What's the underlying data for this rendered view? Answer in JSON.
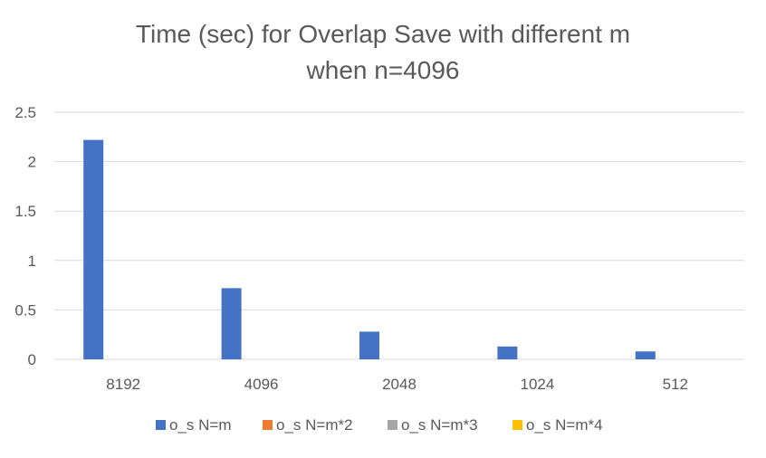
{
  "chart_data": {
    "type": "bar",
    "title": "Time (sec) for Overlap Save with different m",
    "subtitle": "when n=4096",
    "categories": [
      "8192",
      "4096",
      "2048",
      "1024",
      "512"
    ],
    "series": [
      {
        "name": "o_s N=m",
        "color": "#4472C4",
        "values": [
          2.22,
          0.72,
          0.28,
          0.13,
          0.08
        ]
      },
      {
        "name": "o_s N=m*2",
        "color": "#ED7D31",
        "values": [
          0,
          0,
          0,
          0,
          0
        ]
      },
      {
        "name": "o_s N=m*3",
        "color": "#A5A5A5",
        "values": [
          0,
          0,
          0,
          0,
          0
        ]
      },
      {
        "name": "o_s N=m*4",
        "color": "#FFC000",
        "values": [
          0,
          0,
          0,
          0,
          0
        ]
      }
    ],
    "yticks": [
      "0",
      "0.5",
      "1",
      "1.5",
      "2",
      "2.5"
    ],
    "ylim": [
      0,
      2.5
    ],
    "grid": true,
    "legend_position": "bottom"
  }
}
